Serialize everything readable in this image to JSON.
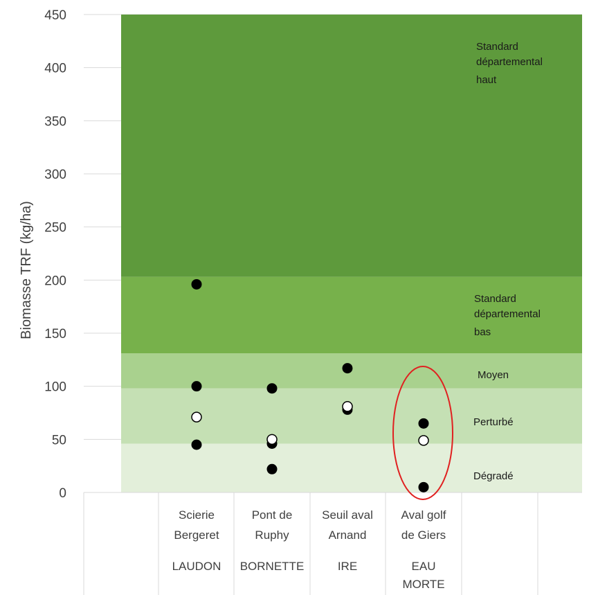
{
  "chart_data": {
    "type": "scatter",
    "title": "",
    "xlabel": "",
    "ylabel": "Biomasse TRF (kg/ha)",
    "ylim": [
      0,
      450
    ],
    "yticks": [
      0,
      50,
      100,
      150,
      200,
      250,
      300,
      350,
      400,
      450
    ],
    "grid": true,
    "categories": [
      {
        "site": [
          "Scierie",
          "Bergeret"
        ],
        "river": [
          "LAUDON"
        ]
      },
      {
        "site": [
          "Pont de",
          "Ruphy"
        ],
        "river": [
          "BORNETTE"
        ]
      },
      {
        "site": [
          "Seuil aval",
          "Arnand"
        ],
        "river": [
          "IRE"
        ]
      },
      {
        "site": [
          "Aval golf",
          "de Giers"
        ],
        "river": [
          "EAU",
          "MORTE"
        ]
      }
    ],
    "bands": [
      {
        "label": [
          "Dégradé"
        ],
        "from": 0,
        "to": 46,
        "color": "#e3efda"
      },
      {
        "label": [
          "Perturbé"
        ],
        "from": 46,
        "to": 98,
        "color": "#c5e0b4"
      },
      {
        "label": [
          "Moyen"
        ],
        "from": 98,
        "to": 131,
        "color": "#a9d18e"
      },
      {
        "label": [
          "Standard",
          "départemental",
          "bas"
        ],
        "from": 131,
        "to": 203,
        "color": "#77b14b"
      },
      {
        "label": [
          "Standard",
          "départemental",
          "haut"
        ],
        "from": 203,
        "to": 450,
        "color": "#5e9a3c"
      }
    ],
    "series": [
      {
        "marker": "filled",
        "color": "#000000",
        "points": [
          {
            "cat": 0,
            "y": 196
          },
          {
            "cat": 0,
            "y": 100
          },
          {
            "cat": 0,
            "y": 45
          },
          {
            "cat": 1,
            "y": 98
          },
          {
            "cat": 1,
            "y": 46
          },
          {
            "cat": 1,
            "y": 22
          },
          {
            "cat": 2,
            "y": 117
          },
          {
            "cat": 2,
            "y": 78
          },
          {
            "cat": 3,
            "y": 65
          },
          {
            "cat": 3,
            "y": 5
          }
        ]
      },
      {
        "marker": "open",
        "color": "#ffffff",
        "points": [
          {
            "cat": 0,
            "y": 71
          },
          {
            "cat": 1,
            "y": 50
          },
          {
            "cat": 2,
            "y": 81
          },
          {
            "cat": 3,
            "y": 49
          }
        ]
      }
    ],
    "annotations": [
      {
        "type": "ellipse",
        "cat": 3,
        "color": "#e02020",
        "y_center": 54,
        "y_half_extent": 123
      }
    ]
  }
}
